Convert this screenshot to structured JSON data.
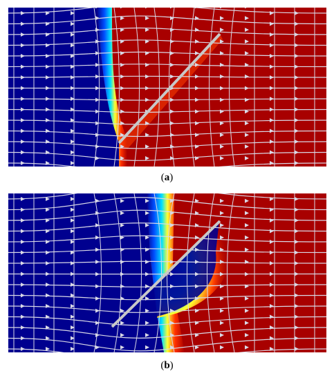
{
  "figure": {
    "panels": [
      {
        "id": "a",
        "caption_letter": "a"
      },
      {
        "id": "b",
        "caption_letter": "b"
      }
    ]
  },
  "colors": {
    "low": "#00008f",
    "high": "#a80000",
    "streamline": "#d9d9e6",
    "fracture": "#c8c8c8"
  }
}
